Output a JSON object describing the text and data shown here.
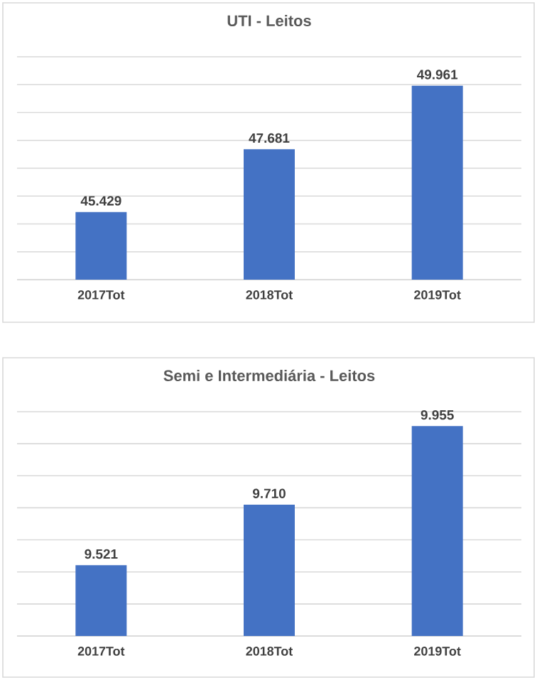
{
  "chart_data": [
    {
      "type": "bar",
      "title": "UTI - Leitos",
      "categories": [
        "2017Tot",
        "2018Tot",
        "2019Tot"
      ],
      "values": [
        45429,
        47681,
        49961
      ],
      "value_labels": [
        "45.429",
        "47.681",
        "49.961"
      ],
      "color": "#4472c4",
      "ylim": [
        43000,
        51000
      ],
      "yticks": [
        {
          "value": 43000,
          "label": null
        },
        {
          "value": 44000,
          "label": null
        },
        {
          "value": 45000,
          "label": null
        },
        {
          "value": 46000,
          "label": null
        },
        {
          "value": 47000,
          "label": null
        },
        {
          "value": 48000,
          "label": null
        },
        {
          "value": 49000,
          "label": null
        },
        {
          "value": 50000,
          "label": null
        },
        {
          "value": 51000,
          "label": null
        }
      ],
      "grid": "y",
      "tick_labels": "x"
    },
    {
      "type": "bar",
      "title": "Semi e Intermediária - Leitos",
      "categories": [
        "2017Tot",
        "2018Tot",
        "2019Tot"
      ],
      "values": [
        9521,
        9710,
        9955
      ],
      "value_labels": [
        "9.521",
        "9.710",
        "9.955"
      ],
      "color": "#4472c4",
      "ylim": [
        9300,
        10000
      ],
      "yticks": [
        {
          "value": 9300,
          "label": null
        },
        {
          "value": 9400,
          "label": null
        },
        {
          "value": 9500,
          "label": null
        },
        {
          "value": 9600,
          "label": null
        },
        {
          "value": 9700,
          "label": null
        },
        {
          "value": 9800,
          "label": null
        },
        {
          "value": 9900,
          "label": null
        },
        {
          "value": 10000,
          "label": null
        }
      ],
      "grid": "y",
      "tick_labels": "x"
    }
  ]
}
